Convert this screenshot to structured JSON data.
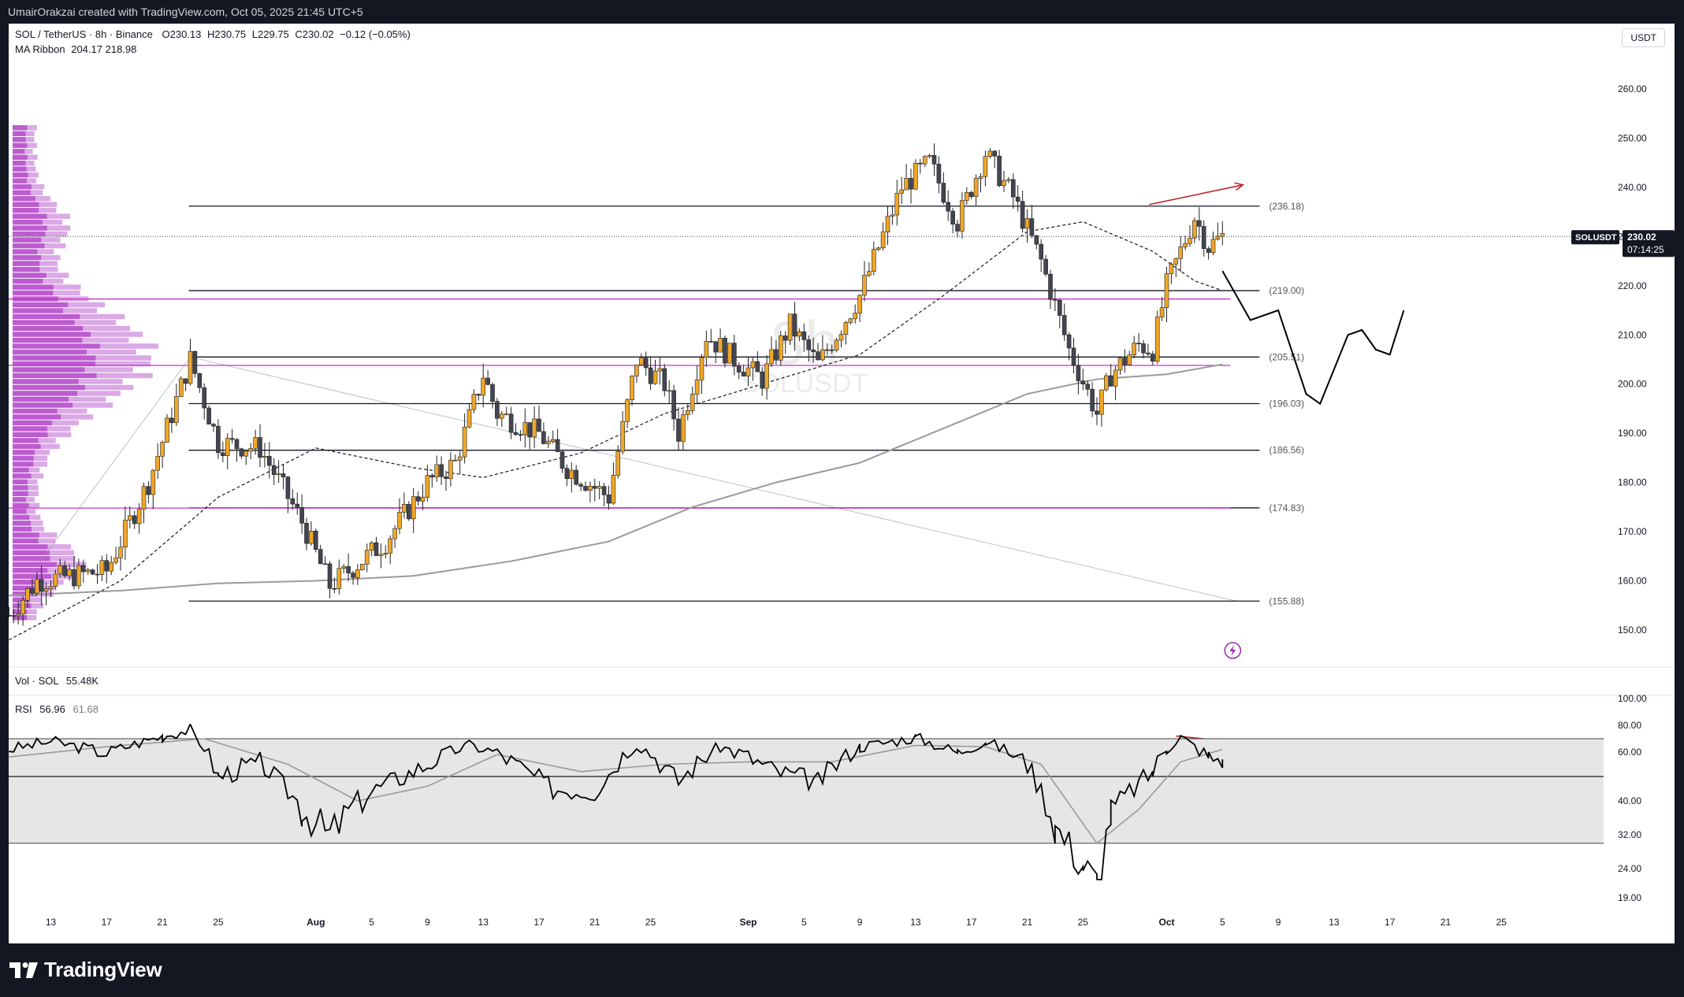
{
  "header": {
    "attribution": "UmairOrakzai created with TradingView.com, Oct 05, 2025 21:45 UTC+5"
  },
  "legend": {
    "symbol": "SOL / TetherUS · 8h · Binance",
    "open": "O230.13",
    "high": "H230.75",
    "low": "L229.75",
    "close": "C230.02",
    "change": "−0.12 (−0.05%)",
    "ma_ribbon": "MA Ribbon",
    "ma_ribbon_values": "204.17  218.98",
    "vol_label": "Vol · SOL",
    "vol_value": "55.48K",
    "rsi_label": "RSI",
    "rsi_value": "56.96",
    "rsi_ma_value": "61.68"
  },
  "currency_chip": "USDT",
  "watermark": {
    "interval": "8h",
    "name": "SOLUSDT",
    "description": "SOL / TetherUS"
  },
  "price_tag": {
    "symbol": "SOLUSDT",
    "price": "230.02",
    "countdown": "07:14:25"
  },
  "footer": {
    "brand": "TradingView"
  },
  "colors": {
    "bull": "#f0a728",
    "bear": "#434651",
    "level_line": "#131722",
    "magenta_line": "#cc33cc",
    "annotation_red": "#c0262d",
    "volume_profile": "#b040c8",
    "ma_fast": "#131722",
    "ma_slow": "#9a9a9a",
    "rsi_band": "#e6e6e6"
  },
  "chart_data": [
    {
      "type": "candlestick",
      "title": "SOL / TetherUS · 8h · Binance",
      "ylim": [
        142,
        268
      ],
      "y_ticks": [
        150,
        160,
        170,
        180,
        190,
        200,
        210,
        220,
        230,
        240,
        250,
        260
      ],
      "x_tick_labels": [
        "13",
        "17",
        "21",
        "25",
        "Aug",
        "5",
        "9",
        "13",
        "17",
        "21",
        "25",
        "Sep",
        "5",
        "9",
        "13",
        "17",
        "21",
        "25",
        "Oct",
        "5",
        "9",
        "13",
        "17",
        "21",
        "25"
      ],
      "price_anchors": [
        {
          "date": "Jul 10",
          "price": 153
        },
        {
          "date": "Jul 12",
          "price": 160
        },
        {
          "date": "Jul 17",
          "price": 162
        },
        {
          "date": "Jul 20",
          "price": 180
        },
        {
          "date": "Jul 23",
          "price": 205
        },
        {
          "date": "Jul 25",
          "price": 188
        },
        {
          "date": "Jul 28",
          "price": 187
        },
        {
          "date": "Jul 31",
          "price": 172
        },
        {
          "date": "Aug 2",
          "price": 159
        },
        {
          "date": "Aug 6",
          "price": 168
        },
        {
          "date": "Aug 9",
          "price": 180
        },
        {
          "date": "Aug 11",
          "price": 184
        },
        {
          "date": "Aug 13",
          "price": 202
        },
        {
          "date": "Aug 14",
          "price": 194
        },
        {
          "date": "Aug 17",
          "price": 190
        },
        {
          "date": "Aug 19",
          "price": 183
        },
        {
          "date": "Aug 22",
          "price": 177
        },
        {
          "date": "Aug 24",
          "price": 205
        },
        {
          "date": "Aug 26",
          "price": 200
        },
        {
          "date": "Aug 27",
          "price": 190
        },
        {
          "date": "Aug 29",
          "price": 210
        },
        {
          "date": "Aug 31",
          "price": 205
        },
        {
          "date": "Sep 2",
          "price": 201
        },
        {
          "date": "Sep 4",
          "price": 212
        },
        {
          "date": "Sep 6",
          "price": 204
        },
        {
          "date": "Sep 9",
          "price": 218
        },
        {
          "date": "Sep 12",
          "price": 240
        },
        {
          "date": "Sep 14",
          "price": 245
        },
        {
          "date": "Sep 16",
          "price": 233
        },
        {
          "date": "Sep 18",
          "price": 247
        },
        {
          "date": "Sep 20",
          "price": 238
        },
        {
          "date": "Sep 22",
          "price": 225
        },
        {
          "date": "Sep 24",
          "price": 207
        },
        {
          "date": "Sep 26",
          "price": 194
        },
        {
          "date": "Sep 27",
          "price": 202
        },
        {
          "date": "Sep 29",
          "price": 208
        },
        {
          "date": "Sep 30",
          "price": 207
        },
        {
          "date": "Oct 1",
          "price": 220
        },
        {
          "date": "Oct 3",
          "price": 234
        },
        {
          "date": "Oct 4",
          "price": 228
        },
        {
          "date": "Oct 5",
          "price": 230
        }
      ],
      "horizontal_levels": [
        {
          "value": 236.18,
          "label": "(236.18)"
        },
        {
          "value": 219.0,
          "label": "(219.00)"
        },
        {
          "value": 205.51,
          "label": "(205.51)"
        },
        {
          "value": 196.03,
          "label": "(196.03)"
        },
        {
          "value": 186.56,
          "label": "(186.56)"
        },
        {
          "value": 174.83,
          "label": "(174.83)"
        },
        {
          "value": 155.88,
          "label": "(155.88)"
        }
      ],
      "magenta_levels": [
        217.3,
        203.8,
        174.8
      ],
      "ma_ribbon": {
        "fast": [
          {
            "date": "Jul 10",
            "price": 148
          },
          {
            "date": "Jul 18",
            "price": 160
          },
          {
            "date": "Jul 25",
            "price": 177
          },
          {
            "date": "Aug 1",
            "price": 187
          },
          {
            "date": "Aug 8",
            "price": 183
          },
          {
            "date": "Aug 13",
            "price": 181
          },
          {
            "date": "Aug 20",
            "price": 186
          },
          {
            "date": "Aug 26",
            "price": 194
          },
          {
            "date": "Sep 2",
            "price": 200
          },
          {
            "date": "Sep 9",
            "price": 206
          },
          {
            "date": "Sep 15",
            "price": 218
          },
          {
            "date": "Sep 21",
            "price": 231
          },
          {
            "date": "Sep 25",
            "price": 233
          },
          {
            "date": "Sep 30",
            "price": 227
          },
          {
            "date": "Oct 3",
            "price": 221
          },
          {
            "date": "Oct 5",
            "price": 219
          }
        ],
        "slow": [
          {
            "date": "Jul 10",
            "price": 157
          },
          {
            "date": "Jul 18",
            "price": 158
          },
          {
            "date": "Jul 25",
            "price": 159.5
          },
          {
            "date": "Aug 1",
            "price": 160
          },
          {
            "date": "Aug 8",
            "price": 161
          },
          {
            "date": "Aug 15",
            "price": 164
          },
          {
            "date": "Aug 22",
            "price": 168
          },
          {
            "date": "Aug 28",
            "price": 175
          },
          {
            "date": "Sep 3",
            "price": 180
          },
          {
            "date": "Sep 9",
            "price": 184
          },
          {
            "date": "Sep 15",
            "price": 191
          },
          {
            "date": "Sep 21",
            "price": 198
          },
          {
            "date": "Sep 26",
            "price": 201
          },
          {
            "date": "Oct 1",
            "price": 202
          },
          {
            "date": "Oct 5",
            "price": 204
          }
        ]
      },
      "projected_path": [
        {
          "date": "Oct 5",
          "price": 223
        },
        {
          "date": "Oct 7",
          "price": 213
        },
        {
          "date": "Oct 9",
          "price": 215
        },
        {
          "date": "Oct 11",
          "price": 198
        },
        {
          "date": "Oct 12",
          "price": 196
        },
        {
          "date": "Oct 14",
          "price": 210
        },
        {
          "date": "Oct 15",
          "price": 211
        },
        {
          "date": "Oct 16",
          "price": 207
        },
        {
          "date": "Oct 17",
          "price": 206
        },
        {
          "date": "Oct 18",
          "price": 215
        }
      ],
      "last_price": 230.02
    },
    {
      "type": "line",
      "title": "RSI",
      "ylim": [
        14,
        102
      ],
      "y_ticks": [
        19,
        24,
        32,
        40,
        60,
        80,
        100
      ],
      "y_tick_labels": [
        "19.00",
        "24.00",
        "32.00",
        "40.00",
        "60.00",
        "80.00",
        "100.00"
      ],
      "band": [
        30,
        70
      ],
      "midline": 50,
      "series": [
        {
          "values": [
            {
              "date": "Jul 10",
              "rsi": 62
            },
            {
              "date": "Jul 13",
              "rsi": 68
            },
            {
              "date": "Jul 17",
              "rsi": 60
            },
            {
              "date": "Jul 21",
              "rsi": 72
            },
            {
              "date": "Jul 23",
              "rsi": 77
            },
            {
              "date": "Jul 25",
              "rsi": 50
            },
            {
              "date": "Jul 28",
              "rsi": 56
            },
            {
              "date": "Jul 31",
              "rsi": 38
            },
            {
              "date": "Aug 2",
              "rsi": 32
            },
            {
              "date": "Aug 5",
              "rsi": 44
            },
            {
              "date": "Aug 9",
              "rsi": 55
            },
            {
              "date": "Aug 12",
              "rsi": 65
            },
            {
              "date": "Aug 14",
              "rsi": 60
            },
            {
              "date": "Aug 18",
              "rsi": 45
            },
            {
              "date": "Aug 21",
              "rsi": 44
            },
            {
              "date": "Aug 24",
              "rsi": 66
            },
            {
              "date": "Aug 27",
              "rsi": 48
            },
            {
              "date": "Aug 30",
              "rsi": 64
            },
            {
              "date": "Sep 3",
              "rsi": 52
            },
            {
              "date": "Sep 6",
              "rsi": 48
            },
            {
              "date": "Sep 9",
              "rsi": 64
            },
            {
              "date": "Sep 13",
              "rsi": 71
            },
            {
              "date": "Sep 16",
              "rsi": 60
            },
            {
              "date": "Sep 18",
              "rsi": 68
            },
            {
              "date": "Sep 21",
              "rsi": 55
            },
            {
              "date": "Sep 23",
              "rsi": 34
            },
            {
              "date": "Sep 25",
              "rsi": 25
            },
            {
              "date": "Sep 26",
              "rsi": 21
            },
            {
              "date": "Sep 27",
              "rsi": 37
            },
            {
              "date": "Sep 30",
              "rsi": 52
            },
            {
              "date": "Oct 1",
              "rsi": 63
            },
            {
              "date": "Oct 2",
              "rsi": 71
            },
            {
              "date": "Oct 4",
              "rsi": 58
            },
            {
              "date": "Oct 5",
              "rsi": 57
            }
          ]
        },
        {
          "values": [
            {
              "date": "Jul 10",
              "rsi": 58
            },
            {
              "date": "Jul 17",
              "rsi": 64
            },
            {
              "date": "Jul 24",
              "rsi": 70
            },
            {
              "date": "Jul 30",
              "rsi": 55
            },
            {
              "date": "Aug 4",
              "rsi": 40
            },
            {
              "date": "Aug 9",
              "rsi": 46
            },
            {
              "date": "Aug 14",
              "rsi": 59
            },
            {
              "date": "Aug 20",
              "rsi": 52
            },
            {
              "date": "Aug 26",
              "rsi": 55
            },
            {
              "date": "Sep 1",
              "rsi": 56
            },
            {
              "date": "Sep 7",
              "rsi": 56
            },
            {
              "date": "Sep 13",
              "rsi": 65
            },
            {
              "date": "Sep 18",
              "rsi": 64
            },
            {
              "date": "Sep 22",
              "rsi": 55
            },
            {
              "date": "Sep 26",
              "rsi": 30
            },
            {
              "date": "Sep 29",
              "rsi": 38
            },
            {
              "date": "Oct 2",
              "rsi": 56
            },
            {
              "date": "Oct 5",
              "rsi": 62
            }
          ]
        }
      ]
    }
  ]
}
